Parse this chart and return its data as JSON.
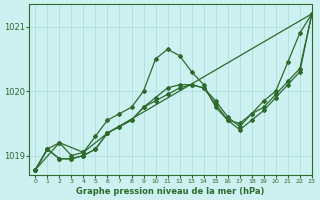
{
  "title": "Graphe pression niveau de la mer (hPa)",
  "bg_color": "#cdf0f0",
  "grid_color": "#aadddd",
  "line_color": "#2d6a2d",
  "xlim": [
    -0.5,
    23
  ],
  "ylim": [
    1018.7,
    1021.35
  ],
  "yticks": [
    1019,
    1020,
    1021
  ],
  "xticks": [
    0,
    1,
    2,
    3,
    4,
    5,
    6,
    7,
    8,
    9,
    10,
    11,
    12,
    13,
    14,
    15,
    16,
    17,
    18,
    19,
    20,
    21,
    22,
    23
  ],
  "series": [
    {
      "x": [
        0,
        1,
        2,
        3,
        4,
        5,
        6,
        7,
        8,
        9,
        10,
        11,
        12,
        13,
        14,
        15,
        16,
        17,
        18,
        19,
        20,
        21,
        22,
        23
      ],
      "y": [
        1018.78,
        1019.1,
        1019.2,
        1019.0,
        1019.05,
        1019.3,
        1019.55,
        1019.65,
        1019.75,
        1020.0,
        1020.5,
        1020.65,
        1020.55,
        1020.3,
        1020.1,
        1019.75,
        1019.55,
        1019.5,
        1019.65,
        1019.85,
        1020.0,
        1020.45,
        1020.9,
        1021.2
      ]
    },
    {
      "x": [
        0,
        1,
        2,
        3,
        4,
        5,
        6,
        7,
        8,
        9,
        10,
        11,
        12,
        13,
        14,
        15,
        16,
        17,
        18,
        19,
        20,
        21,
        22,
        23
      ],
      "y": [
        1018.78,
        1019.1,
        1018.95,
        1018.95,
        1019.0,
        1019.1,
        1019.35,
        1019.45,
        1019.55,
        1019.75,
        1019.9,
        1020.05,
        1020.1,
        1020.1,
        1020.05,
        1019.85,
        1019.6,
        1019.45,
        1019.65,
        1019.75,
        1019.95,
        1020.15,
        1020.35,
        1021.2
      ]
    },
    {
      "x": [
        0,
        1,
        2,
        3,
        4,
        5,
        6,
        7,
        8,
        9,
        10,
        11,
        12,
        13,
        14,
        15,
        16,
        17,
        18,
        19,
        20,
        21,
        22,
        23
      ],
      "y": [
        1018.78,
        1019.1,
        1018.95,
        1018.95,
        1019.0,
        1019.1,
        1019.35,
        1019.45,
        1019.55,
        1019.75,
        1019.85,
        1019.95,
        1020.05,
        1020.1,
        1020.05,
        1019.8,
        1019.55,
        1019.4,
        1019.55,
        1019.7,
        1019.9,
        1020.1,
        1020.3,
        1021.2
      ]
    },
    {
      "x": [
        0,
        2,
        4,
        6,
        23
      ],
      "y": [
        1018.78,
        1019.2,
        1019.05,
        1019.35,
        1021.2
      ]
    }
  ]
}
